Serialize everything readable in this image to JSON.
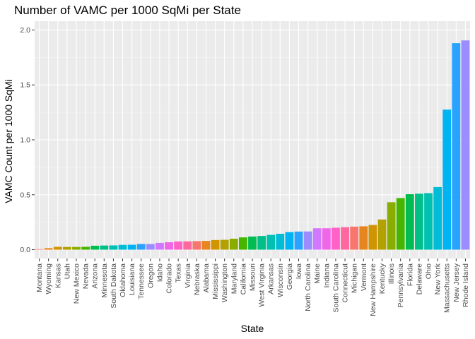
{
  "chart_data": {
    "type": "bar",
    "title": "Number of VAMC per 1000 SqMi per State",
    "xlabel": "State",
    "ylabel": "VAMC Count per 1000 SqMi",
    "ylim": [
      0,
      2.0
    ],
    "y_ticks": [
      "0.0",
      "0.5",
      "1.0",
      "1.5",
      "2.0"
    ],
    "grid": true,
    "legend": "none",
    "categories": [
      "Montana",
      "Wyoming",
      "Kansas",
      "Utah",
      "New Mexico",
      "Nevada",
      "Arizona",
      "Minnesota",
      "South Dakota",
      "Oklahoma",
      "Louisiana",
      "Tennessee",
      "Oregon",
      "Idaho",
      "Colorado",
      "Texas",
      "Virginia",
      "Nebraska",
      "Alabama",
      "Mississippi",
      "Washington",
      "Maryland",
      "California",
      "Missouri",
      "West Virginia",
      "Arkansas",
      "Wisconsin",
      "Georgia",
      "Iowa",
      "North Carolina",
      "Maine",
      "Indiana",
      "South Carolina",
      "Connecticut",
      "Michigan",
      "Vermont",
      "New Hampshire",
      "Kentucky",
      "Illinois",
      "Pennsylvania",
      "Florida",
      "Delaware",
      "Ohio",
      "New York",
      "Massachusetts",
      "New Jersey",
      "Rhode Island"
    ],
    "values": [
      0.005,
      0.014,
      0.026,
      0.025,
      0.025,
      0.026,
      0.036,
      0.038,
      0.039,
      0.044,
      0.045,
      0.052,
      0.052,
      0.062,
      0.068,
      0.075,
      0.076,
      0.078,
      0.08,
      0.088,
      0.09,
      0.1,
      0.112,
      0.12,
      0.125,
      0.135,
      0.145,
      0.16,
      0.165,
      0.166,
      0.195,
      0.195,
      0.2,
      0.205,
      0.21,
      0.213,
      0.225,
      0.275,
      0.432,
      0.47,
      0.505,
      0.51,
      0.515,
      0.57,
      1.275,
      1.88,
      1.905
    ],
    "colors": [
      "#F8766D",
      "#E7851E",
      "#D09400",
      "#B2A100",
      "#89AC00",
      "#45B500",
      "#00BC51",
      "#00C087",
      "#00C0B2",
      "#00BCD6",
      "#00B3F2",
      "#29A3FF",
      "#9C8DFF",
      "#D277FF",
      "#F166E8",
      "#FF61C7",
      "#FF689E",
      "#F8766D",
      "#E7851E",
      "#D09400",
      "#B2A100",
      "#89AC00",
      "#45B500",
      "#00BC51",
      "#00C087",
      "#00C0B2",
      "#00BCD6",
      "#00B3F2",
      "#29A3FF",
      "#9C8DFF",
      "#D277FF",
      "#F166E8",
      "#FF61C7",
      "#FF689E",
      "#F8766D",
      "#E7851E",
      "#D09400",
      "#B2A100",
      "#89AC00",
      "#45B500",
      "#00BC51",
      "#00C087",
      "#00C0B2",
      "#00BCD6",
      "#00B3F2",
      "#29A3FF",
      "#9C8DFF"
    ]
  }
}
